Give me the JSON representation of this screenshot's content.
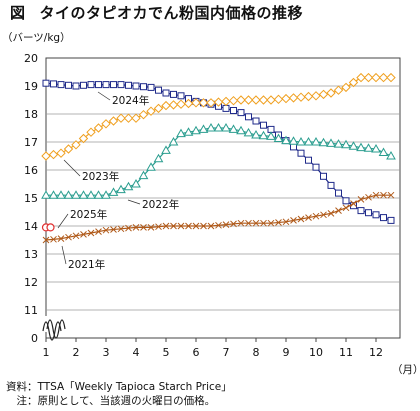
{
  "title": {
    "figure_label": "図",
    "text": "タイのタピオカでん粉国内価格の推移"
  },
  "chart_data": {
    "type": "line",
    "ylabel": "（バーツ/kg）",
    "xlabel": "（月）",
    "ylim": [
      11,
      20
    ],
    "y_axis_break": true,
    "y_ticks": [
      "20",
      "19",
      "18",
      "17",
      "16",
      "15",
      "14",
      "13",
      "12",
      "11",
      "0"
    ],
    "x_ticks": [
      "1",
      "2",
      "3",
      "4",
      "5",
      "6",
      "7",
      "8",
      "9",
      "10",
      "11",
      "12"
    ],
    "xlim": [
      1,
      12.8
    ],
    "grid": true,
    "series": [
      {
        "name": "2024年",
        "color": "#1f2a8a",
        "marker": "square",
        "x": [
          1,
          1.5,
          2,
          2.5,
          3,
          3.5,
          4,
          4.5,
          5,
          5.5,
          6,
          6.5,
          7,
          7.5,
          8,
          8.5,
          9,
          9.5,
          10,
          10.5,
          11,
          11.5,
          12,
          12.5
        ],
        "y": [
          19.1,
          19.05,
          19.0,
          19.05,
          19.05,
          19.05,
          19.0,
          18.95,
          18.75,
          18.65,
          18.45,
          18.35,
          18.2,
          18.05,
          17.75,
          17.45,
          17.05,
          16.6,
          16.1,
          15.45,
          14.9,
          14.55,
          14.4,
          14.2
        ]
      },
      {
        "name": "2023年",
        "color": "#f0a020",
        "marker": "diamond",
        "x": [
          1,
          1.5,
          2,
          2.5,
          3,
          3.5,
          4,
          4.5,
          5,
          5.5,
          6,
          6.5,
          7,
          7.5,
          8,
          8.5,
          9,
          9.5,
          10,
          10.5,
          11,
          11.5,
          12,
          12.5
        ],
        "y": [
          16.5,
          16.6,
          16.9,
          17.35,
          17.65,
          17.85,
          17.85,
          18.1,
          18.3,
          18.35,
          18.4,
          18.4,
          18.45,
          18.5,
          18.5,
          18.5,
          18.55,
          18.6,
          18.65,
          18.75,
          18.95,
          19.3,
          19.3,
          19.3
        ]
      },
      {
        "name": "2022年",
        "color": "#2a9d8f",
        "marker": "triangle",
        "x": [
          1,
          1.5,
          2,
          2.5,
          3,
          3.5,
          4,
          4.5,
          5,
          5.5,
          6,
          6.5,
          7,
          7.5,
          8,
          8.5,
          9,
          9.5,
          10,
          10.5,
          11,
          11.5,
          12,
          12.5
        ],
        "y": [
          15.1,
          15.1,
          15.1,
          15.1,
          15.1,
          15.3,
          15.5,
          16.1,
          16.7,
          17.3,
          17.4,
          17.5,
          17.5,
          17.4,
          17.25,
          17.2,
          17.05,
          17.0,
          17.0,
          16.95,
          16.9,
          16.8,
          16.75,
          16.5
        ]
      },
      {
        "name": "2025年",
        "color": "#e03030",
        "marker": "circle",
        "x": [
          1,
          1.15
        ],
        "y": [
          13.95,
          13.95
        ]
      },
      {
        "name": "2021年",
        "color": "#b05a1a",
        "marker": "cross",
        "x": [
          1,
          1.5,
          2,
          2.5,
          3,
          3.5,
          4,
          4.5,
          5,
          5.5,
          6,
          6.5,
          7,
          7.5,
          8,
          8.5,
          9,
          9.5,
          10,
          10.5,
          11,
          11.5,
          12,
          12.5
        ],
        "y": [
          13.5,
          13.55,
          13.65,
          13.75,
          13.85,
          13.9,
          13.95,
          13.95,
          14.0,
          14.0,
          14.0,
          14.0,
          14.05,
          14.1,
          14.1,
          14.1,
          14.15,
          14.25,
          14.35,
          14.45,
          14.65,
          14.95,
          15.1,
          15.1
        ]
      }
    ]
  },
  "notes": [
    "資料：TTSA「Weekly Tapioca Starch Price」",
    "　注：原則として、当該週の火曜日の価格。"
  ]
}
